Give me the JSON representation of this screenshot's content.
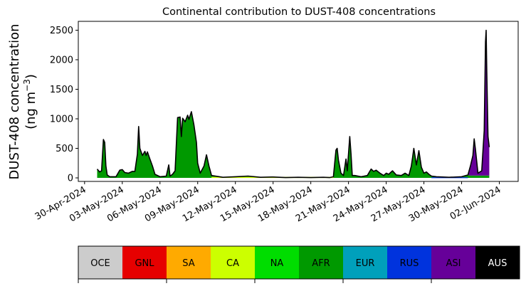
{
  "chart_data": {
    "type": "area",
    "title": "Continental contribution to DUST-408 concentrations",
    "ylabel_line1": "DUST-408 concentration",
    "ylabel_line2": "(ng m",
    "ylabel_sup": "−3",
    "ylabel_close": ")",
    "xlabel": "",
    "ylim": [
      -60,
      2650
    ],
    "yticks": [
      0,
      500,
      1000,
      1500,
      2000,
      2500
    ],
    "ytick_labels": [
      "0",
      "500",
      "1000",
      "1500",
      "2000",
      "2500"
    ],
    "xlim_days": [
      -0.5,
      34.5
    ],
    "xticks_days": [
      0,
      3,
      6,
      9,
      12,
      15,
      18,
      21,
      24,
      27,
      30,
      33
    ],
    "xtick_labels": [
      "30-Apr-2024",
      "03-May-2024",
      "06-May-2024",
      "09-May-2024",
      "12-May-2024",
      "15-May-2024",
      "18-May-2024",
      "21-May-2024",
      "24-May-2024",
      "27-May-2024",
      "30-May-2024",
      "02-Jun-2024"
    ],
    "x_unit": "days after 30-Apr-2024",
    "total": [
      [
        1.0,
        150
      ],
      [
        1.2,
        100
      ],
      [
        1.35,
        120
      ],
      [
        1.5,
        650
      ],
      [
        1.6,
        600
      ],
      [
        1.7,
        200
      ],
      [
        1.8,
        50
      ],
      [
        2.0,
        20
      ],
      [
        2.5,
        20
      ],
      [
        2.8,
        130
      ],
      [
        3.0,
        140
      ],
      [
        3.2,
        90
      ],
      [
        3.5,
        80
      ],
      [
        3.8,
        110
      ],
      [
        4.0,
        110
      ],
      [
        4.2,
        400
      ],
      [
        4.3,
        870
      ],
      [
        4.4,
        500
      ],
      [
        4.6,
        380
      ],
      [
        4.8,
        450
      ],
      [
        4.9,
        380
      ],
      [
        5.0,
        440
      ],
      [
        5.2,
        320
      ],
      [
        5.4,
        200
      ],
      [
        5.6,
        60
      ],
      [
        6.0,
        20
      ],
      [
        6.5,
        30
      ],
      [
        6.7,
        220
      ],
      [
        6.8,
        30
      ],
      [
        7.0,
        60
      ],
      [
        7.2,
        120
      ],
      [
        7.4,
        1020
      ],
      [
        7.6,
        1030
      ],
      [
        7.7,
        700
      ],
      [
        7.8,
        1010
      ],
      [
        8.0,
        950
      ],
      [
        8.2,
        1060
      ],
      [
        8.3,
        990
      ],
      [
        8.5,
        1120
      ],
      [
        8.7,
        900
      ],
      [
        8.9,
        600
      ],
      [
        9.0,
        250
      ],
      [
        9.2,
        80
      ],
      [
        9.5,
        200
      ],
      [
        9.7,
        390
      ],
      [
        9.9,
        200
      ],
      [
        10.1,
        40
      ],
      [
        11.0,
        10
      ],
      [
        12.0,
        20
      ],
      [
        13.0,
        30
      ],
      [
        14.0,
        10
      ],
      [
        15.0,
        15
      ],
      [
        16.0,
        5
      ],
      [
        17.0,
        10
      ],
      [
        18.0,
        5
      ],
      [
        19.0,
        10
      ],
      [
        19.5,
        5
      ],
      [
        19.8,
        20
      ],
      [
        20.0,
        470
      ],
      [
        20.1,
        500
      ],
      [
        20.2,
        300
      ],
      [
        20.4,
        80
      ],
      [
        20.6,
        40
      ],
      [
        20.8,
        320
      ],
      [
        20.9,
        120
      ],
      [
        21.1,
        700
      ],
      [
        21.2,
        400
      ],
      [
        21.3,
        40
      ],
      [
        21.5,
        40
      ],
      [
        22.0,
        20
      ],
      [
        22.5,
        40
      ],
      [
        22.8,
        150
      ],
      [
        23.0,
        110
      ],
      [
        23.2,
        130
      ],
      [
        23.5,
        80
      ],
      [
        23.8,
        40
      ],
      [
        24.0,
        80
      ],
      [
        24.2,
        60
      ],
      [
        24.5,
        120
      ],
      [
        24.8,
        50
      ],
      [
        25.2,
        40
      ],
      [
        25.5,
        80
      ],
      [
        25.8,
        40
      ],
      [
        26.0,
        200
      ],
      [
        26.1,
        350
      ],
      [
        26.2,
        500
      ],
      [
        26.4,
        220
      ],
      [
        26.6,
        460
      ],
      [
        26.8,
        180
      ],
      [
        27.0,
        80
      ],
      [
        27.2,
        100
      ],
      [
        27.4,
        60
      ],
      [
        27.6,
        30
      ],
      [
        28.0,
        20
      ],
      [
        29.0,
        10
      ],
      [
        30.0,
        20
      ],
      [
        30.5,
        50
      ],
      [
        30.7,
        200
      ],
      [
        30.9,
        380
      ],
      [
        31.0,
        660
      ],
      [
        31.1,
        480
      ],
      [
        31.3,
        80
      ],
      [
        31.6,
        120
      ],
      [
        31.8,
        800
      ],
      [
        31.9,
        2300
      ],
      [
        31.95,
        2500
      ],
      [
        32.0,
        1800
      ],
      [
        32.1,
        700
      ],
      [
        32.2,
        520
      ]
    ],
    "series": [
      {
        "name": "AFR",
        "color": "#009900",
        "values": [
          [
            1.0,
            150
          ],
          [
            1.2,
            100
          ],
          [
            1.35,
            120
          ],
          [
            1.5,
            650
          ],
          [
            1.6,
            600
          ],
          [
            1.7,
            200
          ],
          [
            1.8,
            50
          ],
          [
            2.0,
            20
          ],
          [
            2.5,
            20
          ],
          [
            2.8,
            130
          ],
          [
            3.0,
            140
          ],
          [
            3.2,
            90
          ],
          [
            3.5,
            80
          ],
          [
            3.8,
            110
          ],
          [
            4.0,
            110
          ],
          [
            4.2,
            400
          ],
          [
            4.3,
            870
          ],
          [
            4.4,
            500
          ],
          [
            4.6,
            380
          ],
          [
            4.8,
            450
          ],
          [
            4.9,
            380
          ],
          [
            5.0,
            440
          ],
          [
            5.2,
            320
          ],
          [
            5.4,
            200
          ],
          [
            5.6,
            60
          ],
          [
            6.0,
            20
          ],
          [
            6.5,
            30
          ],
          [
            6.7,
            220
          ],
          [
            6.8,
            30
          ],
          [
            7.0,
            60
          ],
          [
            7.2,
            120
          ],
          [
            7.4,
            1020
          ],
          [
            7.6,
            1030
          ],
          [
            7.7,
            700
          ],
          [
            7.8,
            1010
          ],
          [
            8.0,
            950
          ],
          [
            8.2,
            1060
          ],
          [
            8.3,
            990
          ],
          [
            8.5,
            1120
          ],
          [
            8.7,
            900
          ],
          [
            8.9,
            600
          ],
          [
            9.0,
            250
          ],
          [
            9.2,
            80
          ],
          [
            9.5,
            200
          ],
          [
            9.7,
            390
          ],
          [
            9.9,
            200
          ],
          [
            10.1,
            40
          ],
          [
            11.0,
            10
          ],
          [
            12.0,
            20
          ],
          [
            13.0,
            30
          ],
          [
            14.0,
            10
          ],
          [
            15.0,
            15
          ],
          [
            16.0,
            5
          ],
          [
            17.0,
            10
          ],
          [
            18.0,
            5
          ],
          [
            19.0,
            10
          ],
          [
            19.5,
            5
          ],
          [
            19.8,
            20
          ],
          [
            20.0,
            470
          ],
          [
            20.1,
            500
          ],
          [
            20.2,
            300
          ],
          [
            20.4,
            80
          ],
          [
            20.6,
            40
          ],
          [
            20.8,
            320
          ],
          [
            20.9,
            120
          ],
          [
            21.1,
            700
          ],
          [
            21.2,
            400
          ],
          [
            21.3,
            40
          ],
          [
            21.5,
            40
          ],
          [
            22.0,
            20
          ],
          [
            22.5,
            40
          ],
          [
            22.8,
            150
          ],
          [
            23.0,
            110
          ],
          [
            23.2,
            130
          ],
          [
            23.5,
            80
          ],
          [
            23.8,
            40
          ],
          [
            24.0,
            80
          ],
          [
            24.2,
            60
          ],
          [
            24.5,
            120
          ],
          [
            24.8,
            50
          ],
          [
            25.2,
            40
          ],
          [
            25.5,
            80
          ],
          [
            25.8,
            40
          ],
          [
            26.0,
            200
          ],
          [
            26.1,
            350
          ],
          [
            26.2,
            500
          ],
          [
            26.4,
            220
          ],
          [
            26.6,
            460
          ],
          [
            26.8,
            180
          ],
          [
            27.0,
            80
          ],
          [
            27.2,
            100
          ],
          [
            27.4,
            60
          ],
          [
            27.6,
            30
          ],
          [
            28.0,
            20
          ],
          [
            29.0,
            10
          ],
          [
            30.0,
            20
          ],
          [
            30.5,
            50
          ],
          [
            30.7,
            40
          ],
          [
            30.9,
            40
          ],
          [
            31.0,
            40
          ],
          [
            31.1,
            40
          ],
          [
            31.3,
            40
          ],
          [
            31.6,
            40
          ],
          [
            31.8,
            40
          ],
          [
            31.9,
            40
          ],
          [
            31.95,
            40
          ],
          [
            32.0,
            40
          ],
          [
            32.1,
            40
          ],
          [
            32.2,
            40
          ]
        ]
      },
      {
        "name": "ASI",
        "color": "#660099",
        "values": [
          [
            30.5,
            0
          ],
          [
            30.7,
            160
          ],
          [
            30.9,
            340
          ],
          [
            31.0,
            620
          ],
          [
            31.1,
            440
          ],
          [
            31.3,
            40
          ],
          [
            31.6,
            80
          ],
          [
            31.8,
            760
          ],
          [
            31.9,
            2260
          ],
          [
            31.95,
            2460
          ],
          [
            32.0,
            1760
          ],
          [
            32.1,
            660
          ],
          [
            32.2,
            480
          ]
        ]
      }
    ],
    "legend": {
      "placement": "below",
      "entries": [
        {
          "label": "OCE",
          "color": "#cccccc",
          "text_color": "#000000"
        },
        {
          "label": "GNL",
          "color": "#e60000",
          "text_color": "#000000"
        },
        {
          "label": "SA",
          "color": "#ffaa00",
          "text_color": "#000000"
        },
        {
          "label": "CA",
          "color": "#ccff00",
          "text_color": "#000000"
        },
        {
          "label": "NA",
          "color": "#00dd00",
          "text_color": "#000000"
        },
        {
          "label": "AFR",
          "color": "#009900",
          "text_color": "#000000"
        },
        {
          "label": "EUR",
          "color": "#00a0bb",
          "text_color": "#000000"
        },
        {
          "label": "RUS",
          "color": "#0033dd",
          "text_color": "#000000"
        },
        {
          "label": "ASI",
          "color": "#660099",
          "text_color": "#000000"
        },
        {
          "label": "AUS",
          "color": "#000000",
          "text_color": "#ffffff"
        }
      ]
    },
    "grid": false
  }
}
